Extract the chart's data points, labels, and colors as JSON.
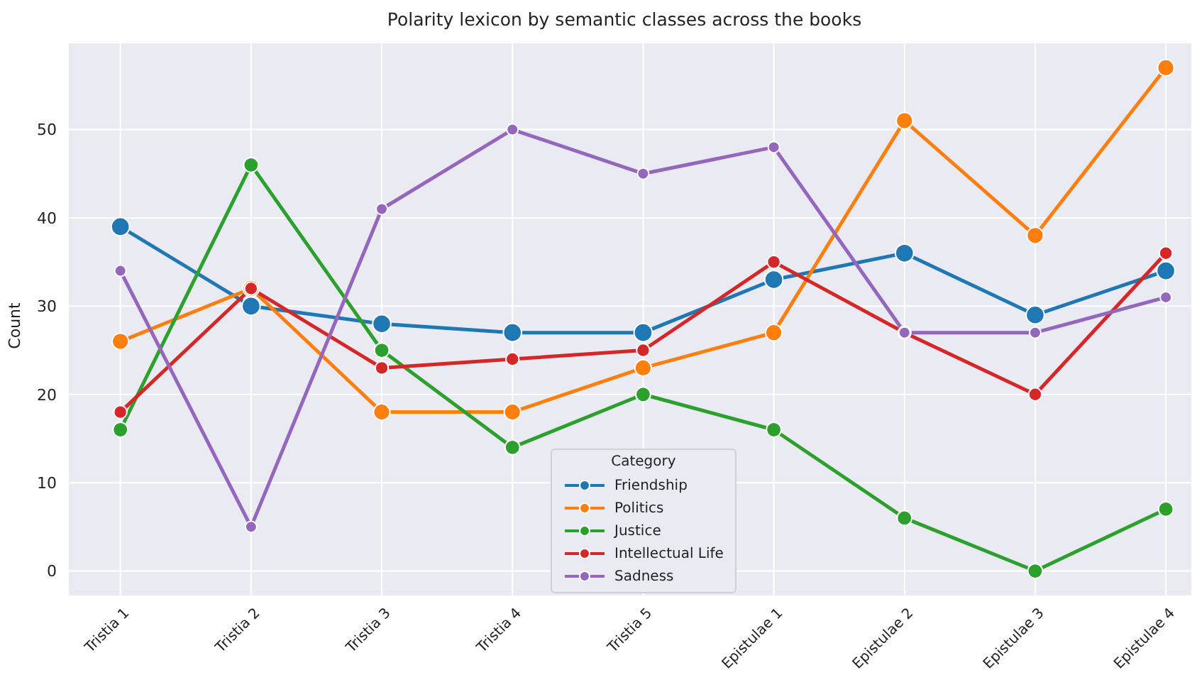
{
  "chart_data": {
    "type": "line",
    "title": "Polarity lexicon by semantic classes across the books",
    "ylabel": "Count",
    "legend_title": "Category",
    "categories": [
      "Tristia 1",
      "Tristia 2",
      "Tristia 3",
      "Tristia 4",
      "Tristia 5",
      "Epistulae 1",
      "Epistulae 2",
      "Epistulae 3",
      "Epistulae 4"
    ],
    "series": [
      {
        "name": "Friendship",
        "color": "#1f77b4",
        "values": [
          39,
          30,
          28,
          27,
          27,
          33,
          36,
          29,
          34
        ]
      },
      {
        "name": "Politics",
        "color": "#ff7f0e",
        "values": [
          26,
          32,
          18,
          18,
          23,
          27,
          51,
          38,
          57
        ]
      },
      {
        "name": "Justice",
        "color": "#2ca02c",
        "values": [
          16,
          46,
          25,
          14,
          20,
          16,
          6,
          0,
          7
        ]
      },
      {
        "name": "Intellectual Life",
        "color": "#d62728",
        "values": [
          18,
          32,
          23,
          24,
          25,
          35,
          27,
          20,
          36
        ]
      },
      {
        "name": "Sadness",
        "color": "#9467bd",
        "values": [
          34,
          5,
          41,
          50,
          45,
          48,
          27,
          27,
          31
        ]
      }
    ],
    "ylim": [
      -2.85,
      59.85
    ],
    "yticks": [
      0,
      10,
      20,
      30,
      40,
      50
    ],
    "grid": true,
    "legend": "bottom",
    "marker": "circle",
    "line_style": "solid"
  }
}
